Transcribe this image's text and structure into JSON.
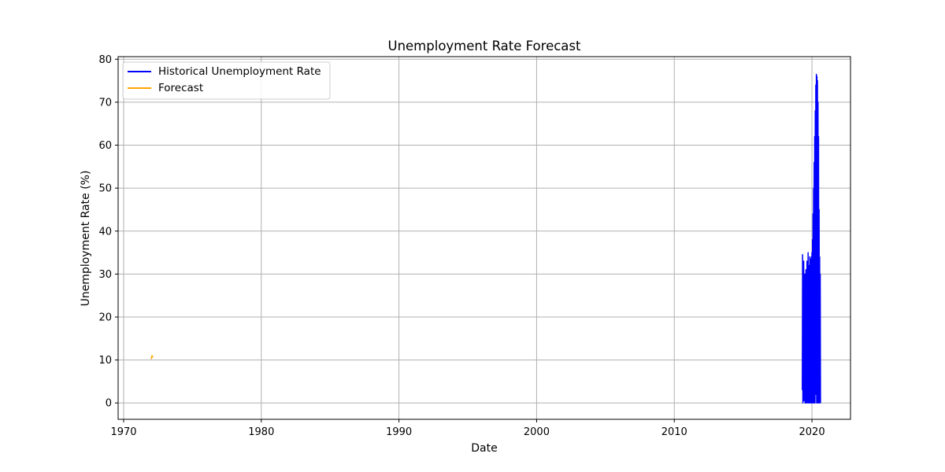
{
  "chart_data": {
    "type": "line",
    "title": "Unemployment Rate Forecast",
    "xlabel": "Date",
    "ylabel": "Unemployment Rate (%)",
    "xlim": [
      1969.6,
      2022.8
    ],
    "ylim": [
      -3.8,
      80.6
    ],
    "xticks": [
      1970,
      1980,
      1990,
      2000,
      2010,
      2020
    ],
    "yticks": [
      0,
      10,
      20,
      30,
      40,
      50,
      60,
      70,
      80
    ],
    "grid": true,
    "legend_position": "top-left",
    "series": [
      {
        "name": "Historical Unemployment Rate",
        "color": "#0000ff",
        "x": [
          2019.3,
          2019.32,
          2019.34,
          2019.36,
          2019.38,
          2019.4,
          2019.42,
          2019.44,
          2019.46,
          2019.48,
          2019.5,
          2019.52,
          2019.54,
          2019.56,
          2019.58,
          2019.6,
          2019.62,
          2019.64,
          2019.66,
          2019.68,
          2019.7,
          2019.72,
          2019.74,
          2019.76,
          2019.78,
          2019.8,
          2019.82,
          2019.84,
          2019.86,
          2019.88,
          2019.9,
          2019.92,
          2019.94,
          2019.96,
          2019.98,
          2020.0,
          2020.02,
          2020.04,
          2020.06,
          2020.08,
          2020.1,
          2020.12,
          2020.14,
          2020.16,
          2020.18,
          2020.2,
          2020.22,
          2020.24,
          2020.26,
          2020.28,
          2020.3,
          2020.32,
          2020.34,
          2020.36,
          2020.38,
          2020.4,
          2020.42,
          2020.44,
          2020.46,
          2020.48,
          2020.5,
          2020.52,
          2020.54,
          2020.56,
          2020.58,
          2020.6,
          2020.62
        ],
        "y": [
          3,
          34.5,
          0,
          25,
          2,
          33,
          0.5,
          20,
          1,
          30,
          0,
          28,
          2,
          31,
          0,
          26,
          3,
          33,
          0,
          27,
          1,
          35,
          0,
          29,
          0.5,
          32,
          0,
          34,
          1,
          30,
          0,
          33.5,
          0.5,
          34,
          0,
          35,
          1,
          38,
          0,
          44,
          2,
          50,
          0,
          56,
          3,
          62,
          0,
          68,
          5,
          74,
          2,
          76.5,
          0,
          76,
          8,
          75,
          0,
          70,
          3,
          62,
          0,
          45,
          1,
          34,
          0,
          30,
          0
        ]
      },
      {
        "name": "Forecast",
        "color": "#ffa500",
        "x": [
          1972.0,
          1972.03,
          1972.06,
          1972.09,
          1972.12
        ],
        "y": [
          10.2,
          10.5,
          11.0,
          10.8,
          10.6
        ]
      }
    ]
  }
}
